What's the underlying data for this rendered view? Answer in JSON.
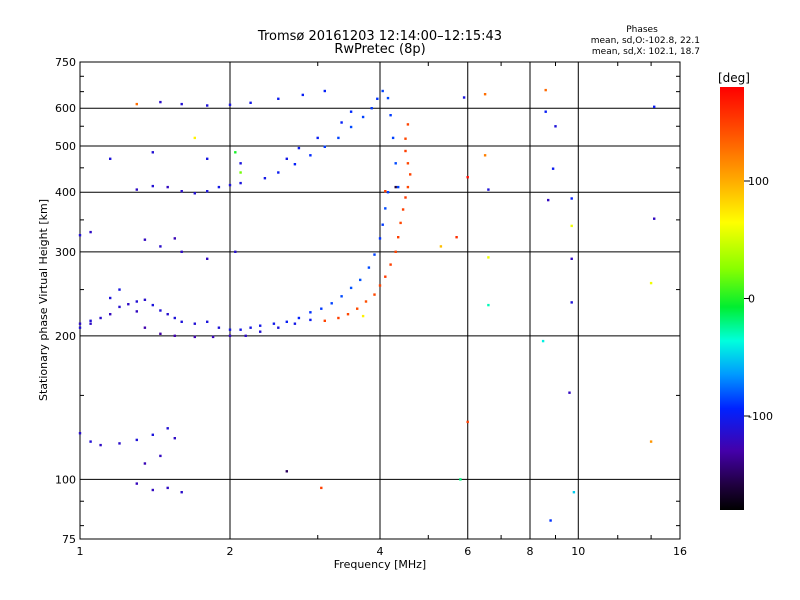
{
  "title_line1": "Tromsø 20161203 12:14:00–12:15:43",
  "title_line2": "RwPretec (8p)",
  "stats": {
    "heading": "Phases",
    "line_o": "mean, sd,O:-102.8, 22.1",
    "line_x": "mean, sd,X: 102.1, 18.7"
  },
  "colorbar": {
    "unit": "[deg]",
    "ticks": [
      "100",
      "0",
      "-100"
    ],
    "tick_values": [
      100,
      0,
      -100
    ],
    "range": [
      -180,
      180
    ]
  },
  "chart_data": {
    "type": "scatter",
    "xlabel": "Frequency [MHz]",
    "ylabel": "Stationary phase Virtual Height [km]",
    "x_scale": "log",
    "y_scale": "log",
    "xlim": [
      1,
      16
    ],
    "ylim": [
      75,
      750
    ],
    "xticks": [
      1,
      2,
      4,
      6,
      8,
      10,
      16
    ],
    "xtick_labels": [
      "1",
      "2",
      "4",
      "6",
      "8",
      "10",
      "16"
    ],
    "yticks": [
      75,
      100,
      200,
      300,
      400,
      500,
      600,
      750
    ],
    "ytick_labels": [
      "75",
      "100",
      "200",
      "300",
      "400",
      "500",
      "600",
      "750"
    ],
    "grid": true,
    "color_scale": "rainbow",
    "series": [
      {
        "points": [
          [
            1.0,
            208,
            -112
          ],
          [
            1.05,
            212,
            -118
          ],
          [
            1.1,
            218,
            -116
          ],
          [
            1.15,
            222,
            -121
          ],
          [
            1.2,
            230,
            -114
          ],
          [
            1.25,
            233,
            -118
          ],
          [
            1.3,
            236,
            -112
          ],
          [
            1.35,
            238,
            -115
          ],
          [
            1.4,
            232,
            -108
          ],
          [
            1.45,
            226,
            -111
          ],
          [
            1.5,
            222,
            -114
          ],
          [
            1.55,
            218,
            -110
          ],
          [
            1.6,
            214,
            -109
          ],
          [
            1.7,
            212,
            -112
          ],
          [
            1.8,
            214,
            -108
          ],
          [
            1.9,
            208,
            -110
          ],
          [
            2.0,
            206,
            -106
          ],
          [
            2.1,
            206,
            -104
          ],
          [
            2.2,
            208,
            -106
          ],
          [
            2.3,
            210,
            -104
          ],
          [
            2.45,
            212,
            -102
          ],
          [
            2.6,
            214,
            -98
          ],
          [
            2.75,
            218,
            -95
          ],
          [
            2.9,
            224,
            -90
          ],
          [
            3.05,
            228,
            -88
          ],
          [
            3.2,
            234,
            -86
          ],
          [
            3.35,
            242,
            -84
          ],
          [
            3.5,
            252,
            -82
          ],
          [
            3.65,
            262,
            -82
          ],
          [
            3.8,
            278,
            -84
          ],
          [
            3.9,
            296,
            -86
          ],
          [
            4.0,
            320,
            -90
          ],
          [
            4.05,
            342,
            -88
          ],
          [
            4.1,
            370,
            -84
          ],
          [
            4.15,
            400,
            -86
          ]
        ]
      },
      {
        "points": [
          [
            1.0,
            212,
            -118
          ],
          [
            1.05,
            215,
            -112
          ],
          [
            1.15,
            240,
            -110
          ],
          [
            1.2,
            250,
            -106
          ],
          [
            1.3,
            225,
            -120
          ],
          [
            1.35,
            208,
            -128
          ],
          [
            1.45,
            202,
            -132
          ],
          [
            1.55,
            200,
            -128
          ],
          [
            1.7,
            199,
            -126
          ],
          [
            1.85,
            199,
            -124
          ],
          [
            2.0,
            200,
            -122
          ],
          [
            2.15,
            200,
            -118
          ],
          [
            2.3,
            204,
            -112
          ],
          [
            2.5,
            208,
            -110
          ],
          [
            2.7,
            212,
            -104
          ],
          [
            2.9,
            216,
            -100
          ]
        ]
      },
      {
        "points": [
          [
            3.1,
            215,
            148
          ],
          [
            3.3,
            218,
            150
          ],
          [
            3.45,
            222,
            146
          ],
          [
            3.6,
            228,
            144
          ],
          [
            3.75,
            236,
            142
          ],
          [
            3.9,
            244,
            146
          ],
          [
            4.0,
            255,
            148
          ],
          [
            4.1,
            266,
            152
          ],
          [
            4.2,
            282,
            150
          ],
          [
            4.3,
            300,
            148
          ],
          [
            4.35,
            322,
            150
          ],
          [
            4.4,
            345,
            146
          ],
          [
            4.45,
            368,
            150
          ],
          [
            4.5,
            390,
            152
          ],
          [
            4.55,
            410,
            146
          ],
          [
            4.6,
            436,
            148
          ],
          [
            4.55,
            460,
            146
          ],
          [
            4.5,
            488,
            150
          ],
          [
            4.5,
            518,
            146
          ],
          [
            4.55,
            555,
            148
          ]
        ]
      },
      {
        "points": [
          [
            1.3,
            405,
            -118
          ],
          [
            1.4,
            412,
            -112
          ],
          [
            1.5,
            410,
            -120
          ],
          [
            1.6,
            402,
            -116
          ],
          [
            1.7,
            398,
            -112
          ],
          [
            1.8,
            402,
            -108
          ],
          [
            1.9,
            410,
            -104
          ],
          [
            2.0,
            414,
            -110
          ],
          [
            2.1,
            418,
            -108
          ],
          [
            2.35,
            428,
            -104
          ],
          [
            2.5,
            440,
            -100
          ],
          [
            2.7,
            458,
            -96
          ],
          [
            2.9,
            478,
            -92
          ],
          [
            3.1,
            498,
            -88
          ],
          [
            3.3,
            520,
            -86
          ],
          [
            3.5,
            548,
            -84
          ],
          [
            3.7,
            575,
            -86
          ],
          [
            3.85,
            600,
            -88
          ],
          [
            3.95,
            628,
            -90
          ],
          [
            4.05,
            652,
            -86
          ],
          [
            4.15,
            630,
            -84
          ],
          [
            4.2,
            580,
            -88
          ],
          [
            4.25,
            520,
            -86
          ],
          [
            4.3,
            460,
            -84
          ],
          [
            4.35,
            410,
            -86
          ]
        ]
      },
      {
        "points": [
          [
            1.45,
            618,
            -116
          ],
          [
            1.6,
            612,
            -112
          ],
          [
            1.8,
            608,
            -110
          ],
          [
            2.0,
            610,
            -108
          ],
          [
            2.2,
            616,
            -104
          ],
          [
            2.5,
            628,
            -100
          ],
          [
            2.8,
            640,
            -98
          ],
          [
            3.1,
            652,
            -96
          ]
        ]
      },
      {
        "points": [
          [
            1.0,
            125,
            -116
          ],
          [
            1.05,
            120,
            -112
          ],
          [
            1.1,
            118,
            -118
          ],
          [
            1.2,
            119,
            -116
          ],
          [
            1.3,
            121,
            -110
          ],
          [
            1.4,
            124,
            -108
          ],
          [
            1.5,
            128,
            -112
          ],
          [
            1.55,
            122,
            -118
          ],
          [
            1.45,
            112,
            -120
          ],
          [
            1.35,
            108,
            -124
          ],
          [
            1.3,
            98,
            -122
          ],
          [
            1.4,
            95,
            -120
          ],
          [
            1.5,
            96,
            -118
          ],
          [
            1.6,
            94,
            -116
          ]
        ]
      },
      {
        "points": [
          [
            1.0,
            325,
            -112
          ],
          [
            1.05,
            330,
            -118
          ],
          [
            1.35,
            318,
            -120
          ],
          [
            1.45,
            308,
            -116
          ],
          [
            1.55,
            320,
            -124
          ],
          [
            1.6,
            300,
            -118
          ],
          [
            1.8,
            290,
            -120
          ],
          [
            2.05,
            300,
            -114
          ],
          [
            1.15,
            470,
            -110
          ],
          [
            1.4,
            485,
            -112
          ],
          [
            1.8,
            470,
            -106
          ],
          [
            2.1,
            460,
            -108
          ],
          [
            2.6,
            470,
            -104
          ],
          [
            2.75,
            495,
            -100
          ],
          [
            3.0,
            520,
            -98
          ],
          [
            3.35,
            560,
            -96
          ],
          [
            3.5,
            590,
            -92
          ]
        ]
      },
      {
        "points": [
          [
            1.3,
            612,
            128
          ],
          [
            1.7,
            520,
            70
          ],
          [
            2.05,
            485,
            -2
          ],
          [
            2.1,
            440,
            20
          ],
          [
            3.05,
            96,
            150
          ],
          [
            5.3,
            308,
            92
          ],
          [
            5.7,
            322,
            158
          ],
          [
            5.9,
            632,
            -108
          ],
          [
            6.5,
            642,
            128
          ],
          [
            6.5,
            478,
            120
          ],
          [
            6.6,
            405,
            -110
          ],
          [
            6.6,
            292,
            60
          ],
          [
            6.6,
            232,
            -30
          ],
          [
            6.0,
            430,
            174
          ],
          [
            6.0,
            132,
            150
          ],
          [
            8.6,
            655,
            130
          ],
          [
            8.6,
            590,
            -98
          ],
          [
            8.7,
            385,
            -120
          ],
          [
            8.9,
            448,
            -100
          ],
          [
            9.0,
            550,
            -110
          ],
          [
            9.7,
            388,
            -96
          ],
          [
            9.7,
            340,
            60
          ],
          [
            9.7,
            290,
            -120
          ],
          [
            9.7,
            235,
            -110
          ],
          [
            8.5,
            195,
            -40
          ],
          [
            9.6,
            152,
            -120
          ],
          [
            9.8,
            94,
            -50
          ],
          [
            8.8,
            82,
            -90
          ],
          [
            4.1,
            402,
            150
          ],
          [
            14.2,
            352,
            -120
          ],
          [
            14.2,
            604,
            -100
          ],
          [
            14.0,
            120,
            110
          ],
          [
            14.0,
            258,
            60
          ],
          [
            5.8,
            100,
            -20
          ],
          [
            4.3,
            410,
            -160
          ],
          [
            2.6,
            104,
            -150
          ],
          [
            3.7,
            220,
            70
          ]
        ]
      }
    ]
  }
}
